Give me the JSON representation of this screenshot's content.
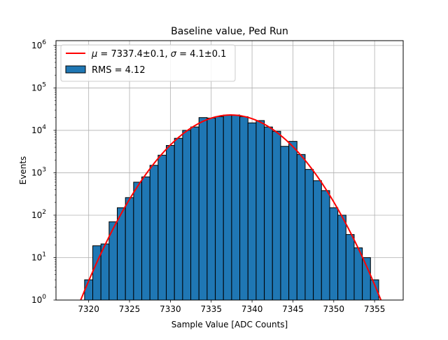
{
  "chart_data": {
    "type": "bar",
    "title": "Baseline value, Ped Run",
    "xlabel": "Sample Value [ADC Counts]",
    "ylabel": "Events",
    "xlim": [
      7316,
      7358.5
    ],
    "ylim": [
      1,
      1300000
    ],
    "yscale": "log",
    "grid": true,
    "legend_position": "top-left",
    "x_ticks": [
      {
        "value": 7320,
        "label": "7320"
      },
      {
        "value": 7325,
        "label": "7325"
      },
      {
        "value": 7330,
        "label": "7330"
      },
      {
        "value": 7335,
        "label": "7335"
      },
      {
        "value": 7340,
        "label": "7340"
      },
      {
        "value": 7345,
        "label": "7345"
      },
      {
        "value": 7350,
        "label": "7350"
      },
      {
        "value": 7355,
        "label": "7355"
      }
    ],
    "y_ticks": [
      {
        "value": 1,
        "label": "10",
        "exp": "0"
      },
      {
        "value": 10,
        "label": "10",
        "exp": "1"
      },
      {
        "value": 100,
        "label": "10",
        "exp": "2"
      },
      {
        "value": 1000,
        "label": "10",
        "exp": "3"
      },
      {
        "value": 10000,
        "label": "10",
        "exp": "4"
      },
      {
        "value": 100000,
        "label": "10",
        "exp": "5"
      },
      {
        "value": 1000000,
        "label": "10",
        "exp": "6"
      }
    ],
    "histogram": {
      "name": "RMS = 4.12",
      "color": "#1f77b4",
      "edge_color": "#000000",
      "bin_width": 1,
      "bins": [
        {
          "start": 7319.5,
          "value": 3
        },
        {
          "start": 7320.5,
          "value": 19
        },
        {
          "start": 7321.5,
          "value": 21
        },
        {
          "start": 7322.5,
          "value": 70
        },
        {
          "start": 7323.5,
          "value": 150
        },
        {
          "start": 7324.5,
          "value": 260
        },
        {
          "start": 7325.5,
          "value": 600
        },
        {
          "start": 7326.5,
          "value": 800
        },
        {
          "start": 7327.5,
          "value": 1500
        },
        {
          "start": 7328.5,
          "value": 2600
        },
        {
          "start": 7329.5,
          "value": 4400
        },
        {
          "start": 7330.5,
          "value": 6500
        },
        {
          "start": 7331.5,
          "value": 10000
        },
        {
          "start": 7332.5,
          "value": 12000
        },
        {
          "start": 7333.5,
          "value": 20000
        },
        {
          "start": 7334.5,
          "value": 19500
        },
        {
          "start": 7335.5,
          "value": 21000
        },
        {
          "start": 7336.5,
          "value": 23000
        },
        {
          "start": 7337.5,
          "value": 23000
        },
        {
          "start": 7338.5,
          "value": 21000
        },
        {
          "start": 7339.5,
          "value": 15000
        },
        {
          "start": 7340.5,
          "value": 17000
        },
        {
          "start": 7341.5,
          "value": 12000
        },
        {
          "start": 7342.5,
          "value": 9500
        },
        {
          "start": 7343.5,
          "value": 4200
        },
        {
          "start": 7344.5,
          "value": 5500
        },
        {
          "start": 7345.5,
          "value": 2700
        },
        {
          "start": 7346.5,
          "value": 1200
        },
        {
          "start": 7347.5,
          "value": 650
        },
        {
          "start": 7348.5,
          "value": 380
        },
        {
          "start": 7349.5,
          "value": 150
        },
        {
          "start": 7350.5,
          "value": 100
        },
        {
          "start": 7351.5,
          "value": 35
        },
        {
          "start": 7352.5,
          "value": 17
        },
        {
          "start": 7353.5,
          "value": 10
        },
        {
          "start": 7354.5,
          "value": 3
        }
      ]
    },
    "fit": {
      "label": "$\\mu = 7337.4 \\pm 0.1$, $\\sigma = 4.1 \\pm 0.1$",
      "label_parts": {
        "mu_symbol": "μ",
        "mu_text": " = 7337.4±0.1, ",
        "sigma_symbol": "σ",
        "sigma_text": " = 4.1±0.1"
      },
      "color": "#ff0000",
      "mu": 7337.4,
      "sigma": 4.1,
      "amplitude": 23000
    }
  }
}
